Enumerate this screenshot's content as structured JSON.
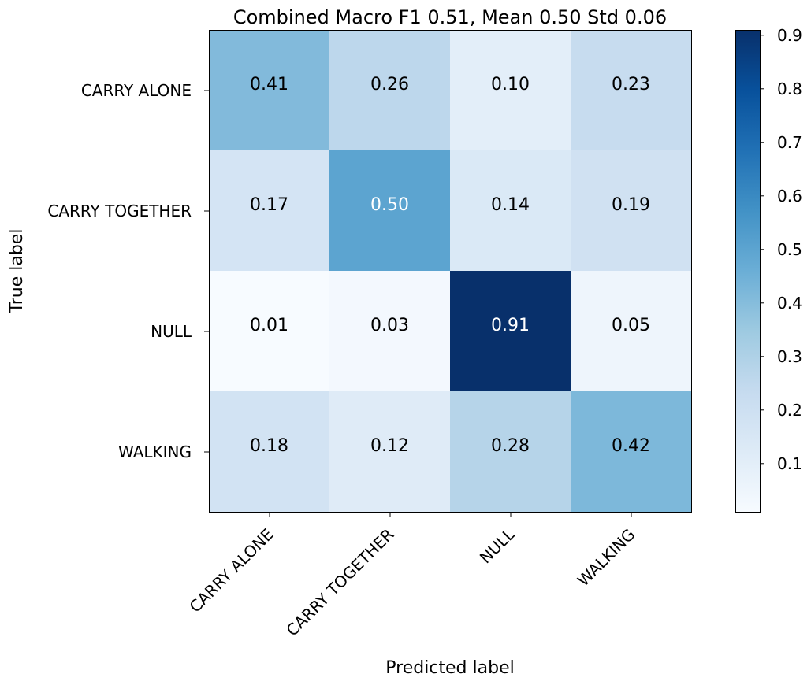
{
  "chart_data": {
    "type": "heatmap",
    "title": "Combined Macro F1 0.51, Mean 0.50 Std 0.06",
    "xlabel": "Predicted label",
    "ylabel": "True label",
    "x_categories": [
      "CARRY ALONE",
      "CARRY TOGETHER",
      "NULL",
      "WALKING"
    ],
    "y_categories": [
      "CARRY ALONE",
      "CARRY TOGETHER",
      "NULL",
      "WALKING"
    ],
    "values": [
      [
        0.41,
        0.26,
        0.1,
        0.23
      ],
      [
        0.17,
        0.5,
        0.14,
        0.19
      ],
      [
        0.01,
        0.03,
        0.91,
        0.05
      ],
      [
        0.18,
        0.12,
        0.28,
        0.42
      ]
    ],
    "value_labels": [
      [
        "0.41",
        "0.26",
        "0.10",
        "0.23"
      ],
      [
        "0.17",
        "0.50",
        "0.14",
        "0.19"
      ],
      [
        "0.01",
        "0.03",
        "0.91",
        "0.05"
      ],
      [
        "0.18",
        "0.12",
        "0.28",
        "0.42"
      ]
    ],
    "colormap": "Blues",
    "vmin": 0.01,
    "vmax": 0.91,
    "colorbar_ticks": [
      0.1,
      0.2,
      0.3,
      0.4,
      0.5,
      0.6,
      0.7,
      0.8,
      0.9
    ],
    "colorbar_tick_labels": [
      "0.1",
      "0.2",
      "0.3",
      "0.4",
      "0.5",
      "0.6",
      "0.7",
      "0.8",
      "0.9"
    ],
    "colors": {
      "text_dark": "#000000",
      "text_light": "#ffffff"
    }
  }
}
